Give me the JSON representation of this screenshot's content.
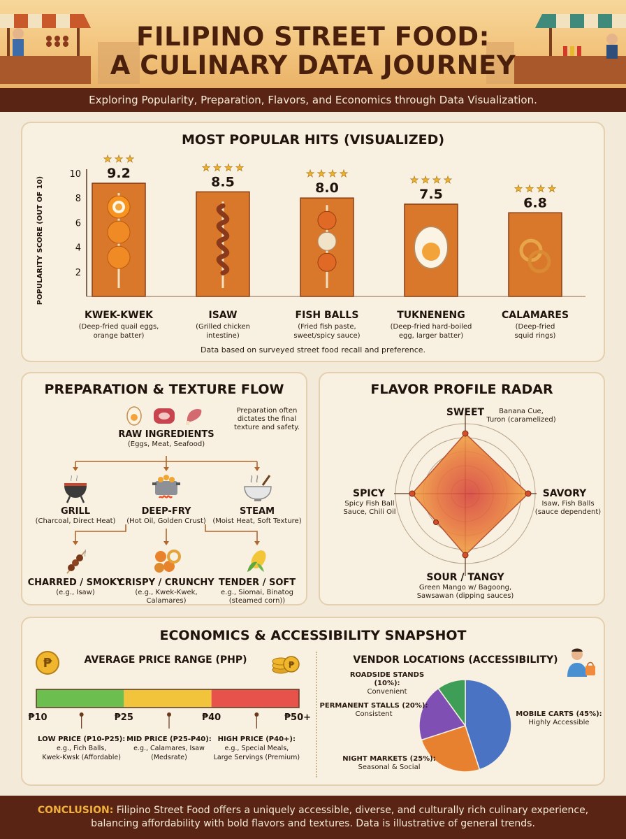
{
  "header": {
    "title_line1": "FILIPINO STREET FOOD:",
    "title_line2": "A CULINARY DATA JOURNEY",
    "subtitle": "Exploring Popularity, Preparation, Flavors, and Economics through Data Visualization."
  },
  "popular": {
    "title": "MOST POPULAR HITS (VISUALIZED)",
    "ylabel": "POPULARITY SCORE (OUT OF 10)",
    "footnote": "Data based on surveyed street food recall and preference.",
    "items": [
      {
        "name": "KWEK-KWEK",
        "desc1": "(Deep-fried quail eggs,",
        "desc2": "orange batter)",
        "stars": 3
      },
      {
        "name": "ISAW",
        "desc1": "(Grilled chicken",
        "desc2": "intestine)",
        "stars": 4
      },
      {
        "name": "FISH BALLS",
        "desc1": "(Fried fish paste,",
        "desc2": "sweet/spicy sauce)",
        "stars": 4
      },
      {
        "name": "TUKNENENG",
        "desc1": "(Deep-fried hard-boiled",
        "desc2": "egg, larger batter)",
        "stars": 4
      },
      {
        "name": "CALAMARES",
        "desc1": "(Deep-fried",
        "desc2": "squid rings)",
        "stars": 4
      }
    ]
  },
  "chart_data": [
    {
      "type": "bar",
      "title": "MOST POPULAR HITS (VISUALIZED)",
      "xlabel": "",
      "ylabel": "POPULARITY SCORE (OUT OF 10)",
      "categories": [
        "KWEK-KWEK",
        "ISAW",
        "FISH BALLS",
        "TUKNENENG",
        "CALAMARES"
      ],
      "values": [
        9.2,
        8.5,
        8.0,
        7.5,
        6.8
      ],
      "value_labels": [
        "9.2",
        "8.5",
        "8.0",
        "7.5",
        "6.8"
      ],
      "yticks": [
        "2",
        "4",
        "6",
        "8",
        "10"
      ],
      "ylim": [
        0,
        10
      ],
      "bar_color": "#d9772a"
    },
    {
      "type": "pie",
      "title": "VENDOR LOCATIONS (ACCESSIBILITY)",
      "categories": [
        "MOBILE CARTS",
        "NIGHT MARKETS",
        "PERMANENT STALLS",
        "ROADSIDE STANDS"
      ],
      "values": [
        45,
        25,
        20,
        10
      ],
      "colors": [
        "#4a73c4",
        "#e8812f",
        "#7f4fb3",
        "#3e9e58"
      ]
    }
  ],
  "flow": {
    "title": "PREPARATION & TEXTURE FLOW",
    "note": [
      "Preparation often",
      "dictates the final",
      "texture and safety."
    ],
    "raw_label": "RAW INGREDIENTS",
    "raw_sub": "(Eggs, Meat, Seafood)",
    "methods": [
      {
        "label": "GRILL",
        "sub": "(Charcoal, Direct Heat)"
      },
      {
        "label": "DEEP-FRY",
        "sub": "(Hot Oil, Golden Crust)"
      },
      {
        "label": "STEAM",
        "sub": "(Moist Heat, Soft Texture)"
      }
    ],
    "results": [
      {
        "label": "CHARRED / SMOKY",
        "sub1": "(e.g., Isaw)",
        "sub2": ""
      },
      {
        "label": "CRISPY / CRUNCHY",
        "sub1": "(e.g., Kwek-Kwek,",
        "sub2": "Calamares)"
      },
      {
        "label": "TENDER / SOFT",
        "sub1": "e.g., Siomai, Binatog",
        "sub2": "(steamed corn))"
      }
    ]
  },
  "radar": {
    "title": "FLAVOR PROFILE RADAR",
    "sweet": "SWEET",
    "sweet_d1": "Banana Cue,",
    "sweet_d2": "Turon (caramelized)",
    "savory": "SAVORY",
    "savory_d1": "Isaw, Fish Balls",
    "savory_d2": "(sauce dependent)",
    "sour": "SOUR / TANGY",
    "sour_d1": "Green Mango w/ Bagoong,",
    "sour_d2": "Sawsawan (dipping sauces)",
    "spicy": "SPICY",
    "spicy_d1": "Spicy Fish Ball",
    "spicy_d2": "Sauce, Chili Oil"
  },
  "econ": {
    "title": "ECONOMICS & ACCESSIBILITY SNAPSHOT",
    "price_title": "AVERAGE PRICE RANGE (PHP)",
    "ticks": [
      "₱10",
      "₱25",
      "₱40",
      "₱50+"
    ],
    "ranges": [
      {
        "l1": "LOW PRICE (P10-P25):",
        "l2": "e.g., Fich Balls,",
        "l3": "Kwek-Kwsk (Affordable)",
        "color": "#6cbf4f"
      },
      {
        "l1": "MID PRICE (P25-P40):",
        "l2": "e.g., Calamares, Isaw",
        "l3": "(Medsrate)",
        "color": "#f1c43c"
      },
      {
        "l1": "HIGH PRICE (P40+):",
        "l2": "e.g., Special Meals,",
        "l3": "Large Servings (Premium)",
        "color": "#e7534a"
      }
    ],
    "vendor_title": "VENDOR LOCATIONS (ACCESSIBILITY)",
    "pie_labels": [
      {
        "l1": "MOBILE CARTS (45%):",
        "l2": "Highly Accessible"
      },
      {
        "l1": "NIGHT MARKETS (25%):",
        "l2": "Seasonal & Social"
      },
      {
        "l1": "PERMANENT STALLS (20%):",
        "l2": "Consistent"
      },
      {
        "l1": "ROADSIDE STANDS (10%):",
        "l2": "Convenient"
      }
    ]
  },
  "conclusion": {
    "lead": "CONCLUSION:",
    "text": " Filipino Street Food offers a uniquely accessible, diverse, and culturally rich culinary experience, balancing affordability with bold flavors and textures. Data is illustrative of general trends."
  }
}
